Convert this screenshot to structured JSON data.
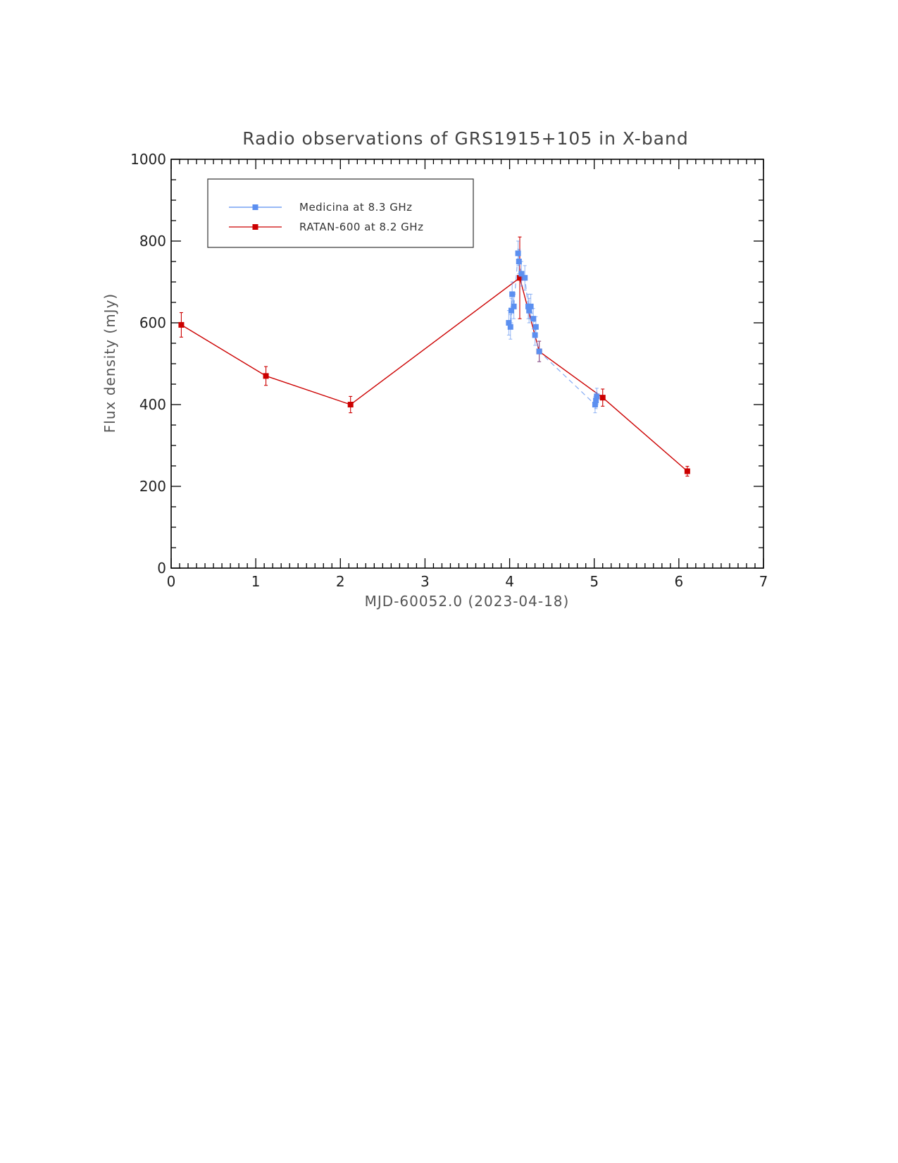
{
  "chart_data": {
    "type": "scatter",
    "title": "Radio observations of GRS1915+105 in X-band",
    "xlabel": "MJD-60052.0 (2023-04-18)",
    "ylabel": "Flux density (mJy)",
    "xlim": [
      0,
      7
    ],
    "ylim": [
      0,
      1000
    ],
    "xticks": [
      "0",
      "1",
      "2",
      "3",
      "4",
      "5",
      "6",
      "7"
    ],
    "yticks": [
      "0",
      "200",
      "400",
      "600",
      "800",
      "1000"
    ],
    "legend_position": "top-left",
    "series": [
      {
        "name": "Medicina at 8.3 GHz",
        "color": "#5b8ff0",
        "line_style": "dashed",
        "points": [
          {
            "x": 3.99,
            "y": 600,
            "err": 30
          },
          {
            "x": 4.01,
            "y": 590,
            "err": 30
          },
          {
            "x": 4.02,
            "y": 630,
            "err": 30
          },
          {
            "x": 4.03,
            "y": 670,
            "err": 30
          },
          {
            "x": 4.05,
            "y": 640,
            "err": 30
          },
          {
            "x": 4.1,
            "y": 770,
            "err": 30
          },
          {
            "x": 4.11,
            "y": 750,
            "err": 30
          },
          {
            "x": 4.14,
            "y": 720,
            "err": 30
          },
          {
            "x": 4.18,
            "y": 710,
            "err": 30
          },
          {
            "x": 4.22,
            "y": 640,
            "err": 30
          },
          {
            "x": 4.23,
            "y": 630,
            "err": 30
          },
          {
            "x": 4.25,
            "y": 640,
            "err": 30
          },
          {
            "x": 4.28,
            "y": 610,
            "err": 25
          },
          {
            "x": 4.31,
            "y": 590,
            "err": 25
          },
          {
            "x": 4.3,
            "y": 570,
            "err": 25
          },
          {
            "x": 4.35,
            "y": 530,
            "err": 25
          },
          {
            "x": 5.01,
            "y": 400,
            "err": 20
          },
          {
            "x": 5.02,
            "y": 410,
            "err": 20
          },
          {
            "x": 5.03,
            "y": 420,
            "err": 20
          }
        ]
      },
      {
        "name": "RATAN-600 at 8.2 GHz",
        "color": "#cc0000",
        "line_style": "solid",
        "points": [
          {
            "x": 0.12,
            "y": 595,
            "err": 30
          },
          {
            "x": 1.12,
            "y": 470,
            "err": 23
          },
          {
            "x": 2.12,
            "y": 400,
            "err": 20
          },
          {
            "x": 4.12,
            "y": 710,
            "err": 100
          },
          {
            "x": 4.35,
            "y": 530,
            "err": 25
          },
          {
            "x": 5.1,
            "y": 417,
            "err": 21
          },
          {
            "x": 6.1,
            "y": 237,
            "err": 12
          }
        ]
      }
    ]
  }
}
